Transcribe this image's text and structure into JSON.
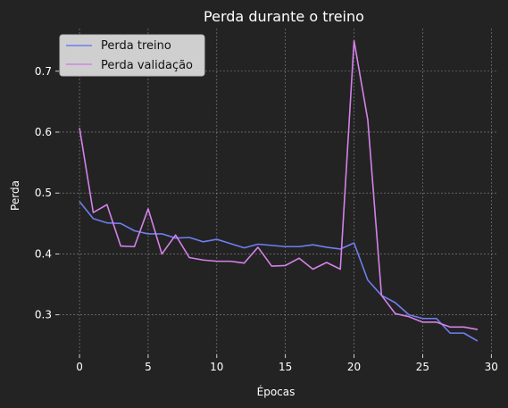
{
  "chart_data": {
    "type": "line",
    "title": "Perda durante o treino",
    "xlabel": "Épocas",
    "ylabel": "Perda",
    "xlim": [
      -1.5,
      30.5
    ],
    "ylim": [
      0.235,
      0.77
    ],
    "xticks": [
      0,
      5,
      10,
      15,
      20,
      25,
      30
    ],
    "yticks": [
      0.3,
      0.4,
      0.5,
      0.6,
      0.7
    ],
    "grid": true,
    "legend_position": "top-left",
    "background_color": "#232323",
    "x": [
      0,
      1,
      2,
      3,
      4,
      5,
      6,
      7,
      8,
      9,
      10,
      11,
      12,
      13,
      14,
      15,
      16,
      17,
      18,
      19,
      20,
      21,
      22,
      23,
      24,
      25,
      26,
      27,
      28,
      29
    ],
    "series": [
      {
        "name": "Perda treino",
        "color": "#6e7ff0",
        "values": [
          0.486,
          0.458,
          0.451,
          0.45,
          0.438,
          0.433,
          0.433,
          0.426,
          0.427,
          0.42,
          0.424,
          0.417,
          0.41,
          0.416,
          0.414,
          0.412,
          0.412,
          0.415,
          0.411,
          0.408,
          0.418,
          0.357,
          0.332,
          0.32,
          0.3,
          0.294,
          0.294,
          0.27,
          0.27,
          0.257
        ]
      },
      {
        "name": "Perda validação",
        "color": "#d482e8",
        "values": [
          0.607,
          0.468,
          0.481,
          0.413,
          0.412,
          0.474,
          0.4,
          0.431,
          0.394,
          0.39,
          0.388,
          0.388,
          0.385,
          0.411,
          0.38,
          0.381,
          0.393,
          0.375,
          0.386,
          0.375,
          0.75,
          0.62,
          0.332,
          0.302,
          0.297,
          0.288,
          0.288,
          0.28,
          0.28,
          0.276
        ]
      }
    ]
  }
}
